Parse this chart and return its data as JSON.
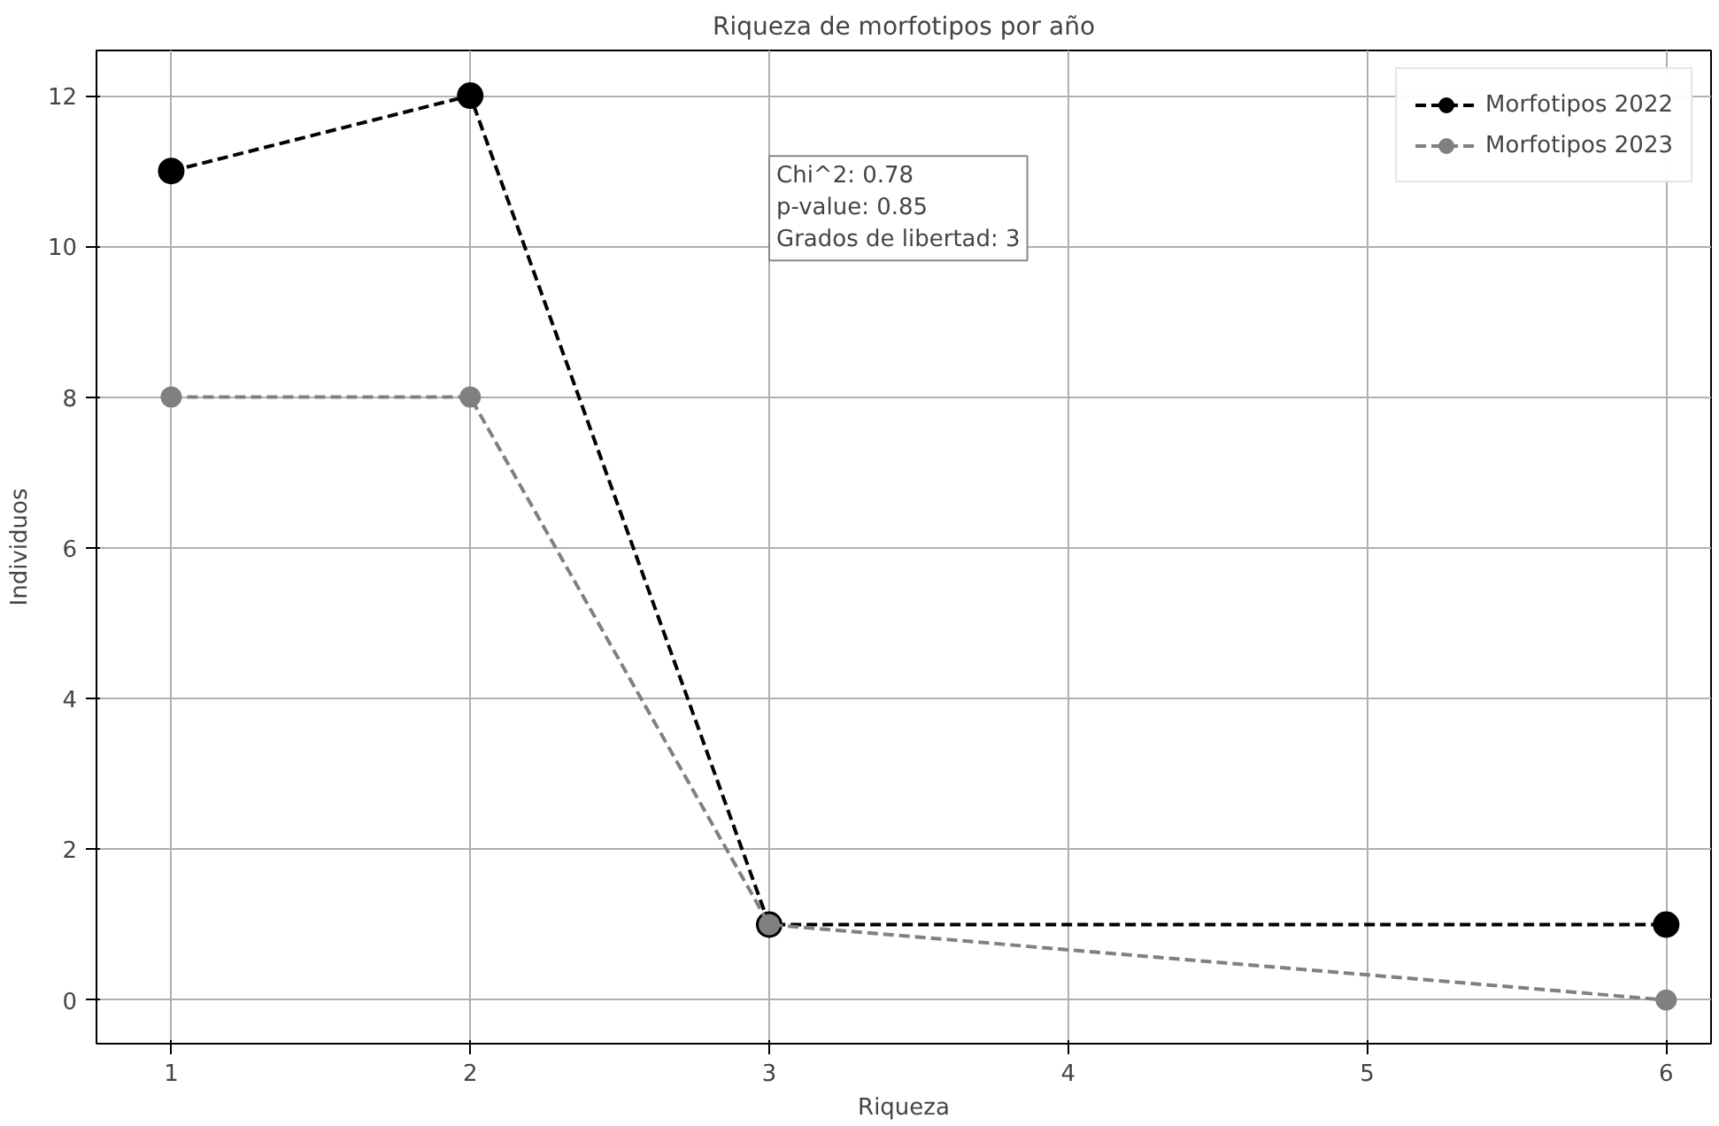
{
  "chart_data": {
    "type": "line",
    "title": "Riqueza de morfotipos por año",
    "xlabel": "Riqueza",
    "ylabel": "Individuos",
    "x": [
      1,
      2,
      3,
      6
    ],
    "series": [
      {
        "name": "Morfotipos 2022",
        "color": "#000000",
        "values": [
          11,
          12,
          1,
          1
        ]
      },
      {
        "name": "Morfotipos 2023",
        "color": "#808080",
        "values": [
          8,
          8,
          1,
          0
        ]
      }
    ],
    "xlim": [
      0.75,
      6.15
    ],
    "ylim": [
      -0.58,
      12.6
    ],
    "xticks": [
      1,
      2,
      3,
      4,
      5,
      6
    ],
    "yticks": [
      0,
      2,
      4,
      6,
      8,
      10,
      12
    ],
    "annotations": [
      "Chi^2: 0.78\np-value: 0.85\nGrados de libertad: 3"
    ],
    "grid": true,
    "legend": "top right",
    "marker": "circle",
    "line_style": "dashed"
  }
}
